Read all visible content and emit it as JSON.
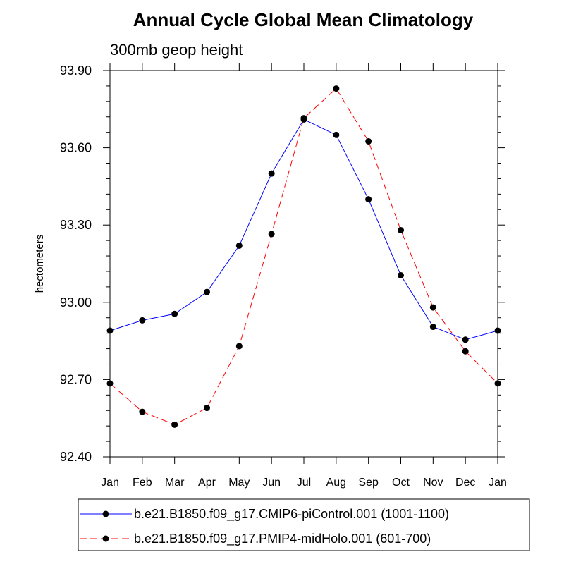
{
  "chart_data": {
    "type": "line",
    "title": "Annual Cycle Global Mean Climatology",
    "subtitle": "300mb geop height",
    "xlabel": "",
    "ylabel": "hectometers",
    "categories": [
      "Jan",
      "Feb",
      "Mar",
      "Apr",
      "May",
      "Jun",
      "Jul",
      "Aug",
      "Sep",
      "Oct",
      "Nov",
      "Dec",
      "Jan"
    ],
    "ylim": [
      92.4,
      93.9
    ],
    "yticks": [
      92.4,
      92.7,
      93.0,
      93.3,
      93.6,
      93.9
    ],
    "ytick_labels": [
      "92.40",
      "92.70",
      "93.00",
      "93.30",
      "93.60",
      "93.90"
    ],
    "grid": false,
    "legend_position": "bottom",
    "series": [
      {
        "name": "b.e21.B1850.f09_g17.CMIP6-piControl.001 (1001-1100)",
        "color": "#0000ff",
        "dash": "solid",
        "values": [
          92.89,
          92.93,
          92.955,
          93.04,
          93.22,
          93.5,
          93.71,
          93.65,
          93.4,
          93.105,
          92.905,
          92.855,
          92.89
        ]
      },
      {
        "name": "b.e21.B1850.f09_g17.PMIP4-midHolo.001 (601-700)",
        "color": "#ff0000",
        "dash": "dashed",
        "values": [
          92.685,
          92.575,
          92.525,
          92.59,
          92.83,
          93.265,
          93.715,
          93.83,
          93.625,
          93.28,
          92.98,
          92.81,
          92.685
        ]
      }
    ]
  }
}
